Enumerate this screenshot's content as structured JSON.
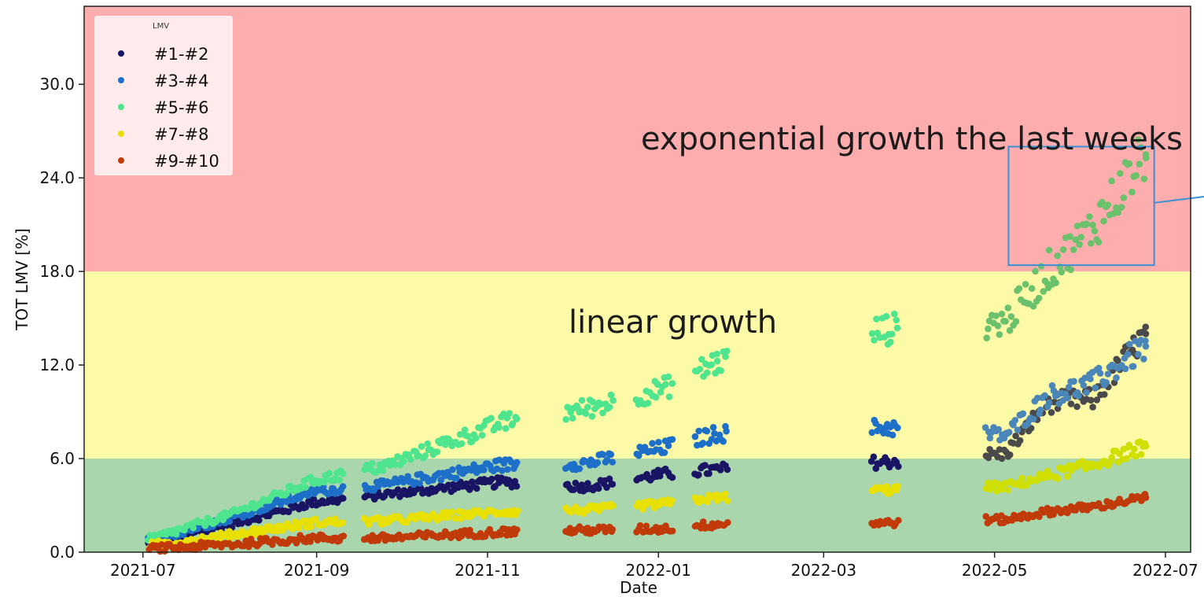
{
  "chart_data": {
    "type": "scatter",
    "xlabel": "Date",
    "ylabel": "TOT LMV [%]",
    "xlim": [
      "2021-06-10",
      "2022-07-10"
    ],
    "ylim": [
      0,
      35
    ],
    "x_ticks": [
      "2021-07",
      "2021-09",
      "2021-11",
      "2022-01",
      "2022-03",
      "2022-05",
      "2022-07"
    ],
    "y_ticks": [
      "0.0",
      "6.0",
      "12.0",
      "18.0",
      "24.0",
      "30.0"
    ],
    "grid": false,
    "legend": {
      "title": "LMV",
      "placement": "top-left"
    },
    "bands": [
      {
        "from": 0,
        "to": 6,
        "color": "#a9d6ad"
      },
      {
        "from": 6,
        "to": 18,
        "color": "#fdfaa7"
      },
      {
        "from": 18,
        "to": 35,
        "color": "#fdadad"
      }
    ],
    "annotations": [
      {
        "text": "exponential growth the last weeks"
      },
      {
        "text": "linear growth"
      }
    ],
    "highlight_box": {
      "x": [
        "2022-05-06",
        "2022-06-27"
      ],
      "y": [
        18.4,
        26.0
      ],
      "color": "#3a8fd6"
    },
    "series": [
      {
        "name": "#1-#2",
        "color": "#1a1464",
        "color_late": "#4a4a4a",
        "points": [
          [
            "2021-07-03",
            0.5
          ],
          [
            "2021-08-01",
            1.8
          ],
          [
            "2021-08-31",
            3.2
          ],
          [
            "2021-09-25",
            3.7
          ],
          [
            "2021-11-06",
            4.5
          ],
          [
            "2021-12-06",
            4.2
          ],
          [
            "2022-01-03",
            5.0
          ],
          [
            "2022-01-22",
            5.3
          ],
          [
            "2022-03-24",
            5.8
          ],
          [
            "2022-05-05",
            6.3
          ],
          [
            "2022-05-20",
            9.6
          ],
          [
            "2022-06-05",
            9.8
          ],
          [
            "2022-06-24",
            14.0
          ]
        ]
      },
      {
        "name": "#3-#4",
        "color": "#1d6fc8",
        "color_late": "#4a86b8",
        "points": [
          [
            "2021-07-03",
            0.7
          ],
          [
            "2021-08-01",
            2.2
          ],
          [
            "2021-08-31",
            3.9
          ],
          [
            "2021-09-25",
            4.3
          ],
          [
            "2021-11-06",
            5.6
          ],
          [
            "2021-12-06",
            5.7
          ],
          [
            "2022-01-03",
            6.7
          ],
          [
            "2022-01-22",
            7.6
          ],
          [
            "2022-03-24",
            8.0
          ],
          [
            "2022-05-05",
            7.5
          ],
          [
            "2022-05-20",
            10.0
          ],
          [
            "2022-06-05",
            10.8
          ],
          [
            "2022-06-24",
            13.2
          ]
        ]
      },
      {
        "name": "#5-#6",
        "color": "#4fe58f",
        "color_late": "#6cc16c",
        "points": [
          [
            "2021-07-03",
            0.8
          ],
          [
            "2021-08-01",
            2.4
          ],
          [
            "2021-08-31",
            4.6
          ],
          [
            "2021-09-25",
            5.5
          ],
          [
            "2021-11-06",
            8.3
          ],
          [
            "2021-12-06",
            9.2
          ],
          [
            "2022-01-03",
            10.5
          ],
          [
            "2022-01-22",
            12.2
          ],
          [
            "2022-03-24",
            14.3
          ],
          [
            "2022-05-05",
            14.8
          ],
          [
            "2022-05-20",
            18.0
          ],
          [
            "2022-06-05",
            20.8
          ],
          [
            "2022-06-24",
            25.5
          ]
        ]
      },
      {
        "name": "#7-#8",
        "color": "#e8e000",
        "color_late": "#cfe000",
        "points": [
          [
            "2021-07-03",
            0.4
          ],
          [
            "2021-08-01",
            1.1
          ],
          [
            "2021-08-31",
            1.9
          ],
          [
            "2021-09-25",
            2.0
          ],
          [
            "2021-11-06",
            2.6
          ],
          [
            "2021-12-06",
            2.7
          ],
          [
            "2022-01-03",
            3.1
          ],
          [
            "2022-01-22",
            3.5
          ],
          [
            "2022-03-24",
            4.0
          ],
          [
            "2022-05-05",
            4.2
          ],
          [
            "2022-05-20",
            4.9
          ],
          [
            "2022-06-05",
            5.6
          ],
          [
            "2022-06-24",
            6.8
          ]
        ]
      },
      {
        "name": "#9-#10",
        "color": "#c03a0a",
        "color_late": "#c03a0a",
        "points": [
          [
            "2021-07-03",
            0.2
          ],
          [
            "2021-08-01",
            0.5
          ],
          [
            "2021-08-31",
            0.9
          ],
          [
            "2021-09-25",
            0.9
          ],
          [
            "2021-11-06",
            1.3
          ],
          [
            "2021-12-06",
            1.4
          ],
          [
            "2022-01-03",
            1.5
          ],
          [
            "2022-01-22",
            1.8
          ],
          [
            "2022-03-24",
            1.9
          ],
          [
            "2022-05-05",
            2.1
          ],
          [
            "2022-05-20",
            2.6
          ],
          [
            "2022-06-05",
            2.9
          ],
          [
            "2022-06-24",
            3.5
          ]
        ]
      }
    ]
  }
}
